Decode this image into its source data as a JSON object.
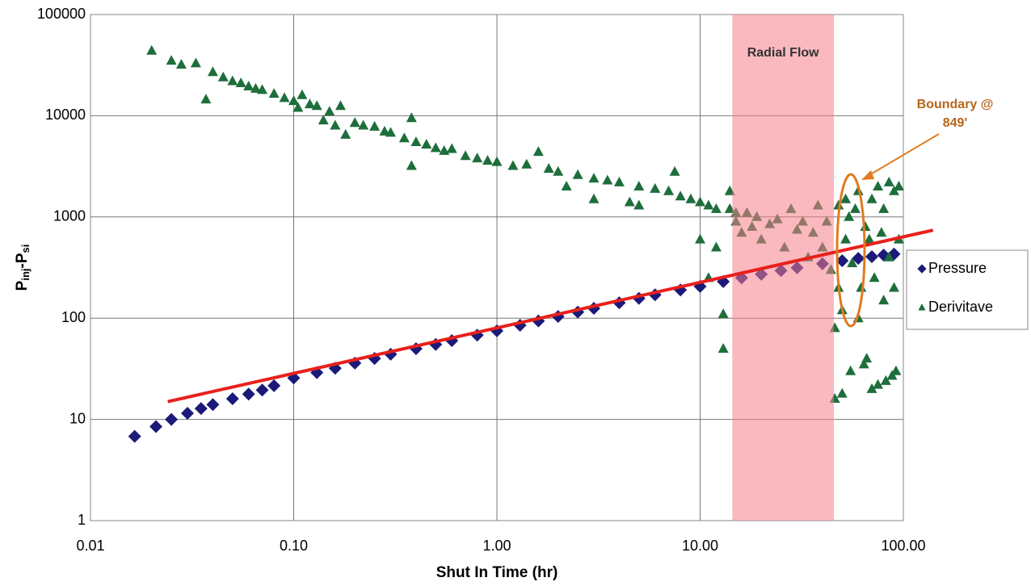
{
  "chart_data": {
    "type": "scatter",
    "xlabel": "Shut In Time (hr)",
    "ylabel": [
      {
        "text": "P"
      },
      {
        "text": "inj",
        "sub": true
      },
      {
        "text": "-P"
      },
      {
        "text": "si",
        "sub": true
      }
    ],
    "xscale": "log",
    "yscale": "log",
    "xlim": [
      0.01,
      100
    ],
    "ylim": [
      1,
      100000
    ],
    "xticks": [
      {
        "value": 0.01,
        "label": "0.01"
      },
      {
        "value": 0.1,
        "label": "0.10"
      },
      {
        "value": 1,
        "label": "1.00"
      },
      {
        "value": 10,
        "label": "10.00"
      },
      {
        "value": 100,
        "label": "100.00"
      }
    ],
    "yticks": [
      1,
      10,
      100,
      1000,
      10000,
      100000
    ],
    "grid": true,
    "legend": "right",
    "shaded_region": {
      "xlim": [
        14.4,
        45.5
      ],
      "label": "Radial Flow",
      "color": "#f47f8a"
    },
    "annotation": {
      "lines": [
        "Boundary @",
        "849'"
      ],
      "color": "#b8651b"
    },
    "trend_line": {
      "color": "#e8201c",
      "x": [
        0.024,
        140
      ],
      "y": [
        15,
        740
      ]
    },
    "series": [
      {
        "name": "Pressure",
        "color": "#1b1a7a",
        "marker": "diamond",
        "x": [
          0.0165,
          0.021,
          0.025,
          0.03,
          0.035,
          0.04,
          0.05,
          0.06,
          0.07,
          0.08,
          0.1,
          0.13,
          0.16,
          0.2,
          0.25,
          0.3,
          0.4,
          0.5,
          0.6,
          0.8,
          1,
          1.3,
          1.6,
          2,
          2.5,
          3,
          4,
          5,
          6,
          8,
          10,
          13,
          16,
          20,
          25,
          30,
          40,
          50,
          60,
          70,
          80,
          90
        ],
        "values": [
          6.8,
          8.5,
          10,
          11.5,
          12.8,
          14,
          16,
          17.8,
          19.5,
          21.5,
          25.7,
          29,
          32,
          36,
          40,
          44,
          50,
          55,
          60,
          68,
          75,
          85,
          94,
          104,
          115,
          125,
          142,
          157,
          170,
          190,
          206,
          230,
          250,
          272,
          295,
          315,
          345,
          370,
          390,
          405,
          420,
          430
        ]
      },
      {
        "name": "Derivitave",
        "color": "#1e6e3c",
        "marker": "triangle",
        "x": [
          0.02,
          0.025,
          0.028,
          0.033,
          0.037,
          0.04,
          0.045,
          0.05,
          0.055,
          0.06,
          0.065,
          0.07,
          0.08,
          0.09,
          0.1,
          0.105,
          0.11,
          0.12,
          0.13,
          0.14,
          0.15,
          0.16,
          0.17,
          0.18,
          0.2,
          0.22,
          0.25,
          0.28,
          0.3,
          0.35,
          0.38,
          0.38,
          0.4,
          0.45,
          0.5,
          0.55,
          0.6,
          0.7,
          0.8,
          0.9,
          1,
          1.2,
          1.4,
          1.6,
          1.8,
          2,
          2.2,
          2.5,
          3,
          3,
          3.5,
          4,
          4.5,
          5,
          5,
          6,
          7,
          7.5,
          8,
          9,
          10,
          10,
          11,
          11,
          12,
          12,
          13,
          13,
          14,
          14,
          15,
          15,
          16,
          17,
          18,
          19,
          20,
          22,
          24,
          26,
          28,
          30,
          32,
          34,
          36,
          38,
          40,
          42,
          44,
          46,
          46,
          48,
          48,
          50,
          50,
          52,
          52,
          54,
          55,
          56,
          58,
          60,
          60,
          62,
          64,
          65,
          66,
          68,
          70,
          70,
          72,
          75,
          75,
          78,
          80,
          80,
          82,
          85,
          85,
          88,
          90,
          90,
          92,
          95,
          95
        ],
        "values": [
          44000,
          35000,
          32000,
          33000,
          14500,
          27000,
          24000,
          22000,
          21000,
          19500,
          18500,
          18000,
          16500,
          15000,
          14000,
          12000,
          16000,
          13000,
          12500,
          9000,
          11000,
          8000,
          12500,
          6500,
          8500,
          8000,
          7800,
          7000,
          6800,
          6000,
          9500,
          3200,
          5500,
          5200,
          4800,
          4500,
          4700,
          4000,
          3800,
          3600,
          3500,
          3200,
          3300,
          4400,
          3000,
          2800,
          2000,
          2600,
          2400,
          1500,
          2300,
          2200,
          1400,
          2000,
          1300,
          1900,
          1800,
          2800,
          1600,
          1500,
          1400,
          600,
          1300,
          250,
          1200,
          500,
          110,
          50,
          1800,
          1200,
          1100,
          900,
          700,
          1100,
          800,
          1000,
          600,
          850,
          950,
          500,
          1200,
          750,
          900,
          400,
          700,
          1300,
          500,
          900,
          300,
          80,
          16,
          1300,
          200,
          120,
          18,
          1500,
          600,
          1000,
          30,
          350,
          1200,
          1800,
          100,
          200,
          35,
          800,
          40,
          600,
          1500,
          20,
          250,
          2000,
          22,
          700,
          1200,
          150,
          24,
          2200,
          400,
          27,
          1800,
          200,
          30,
          2000,
          600
        ]
      }
    ]
  }
}
